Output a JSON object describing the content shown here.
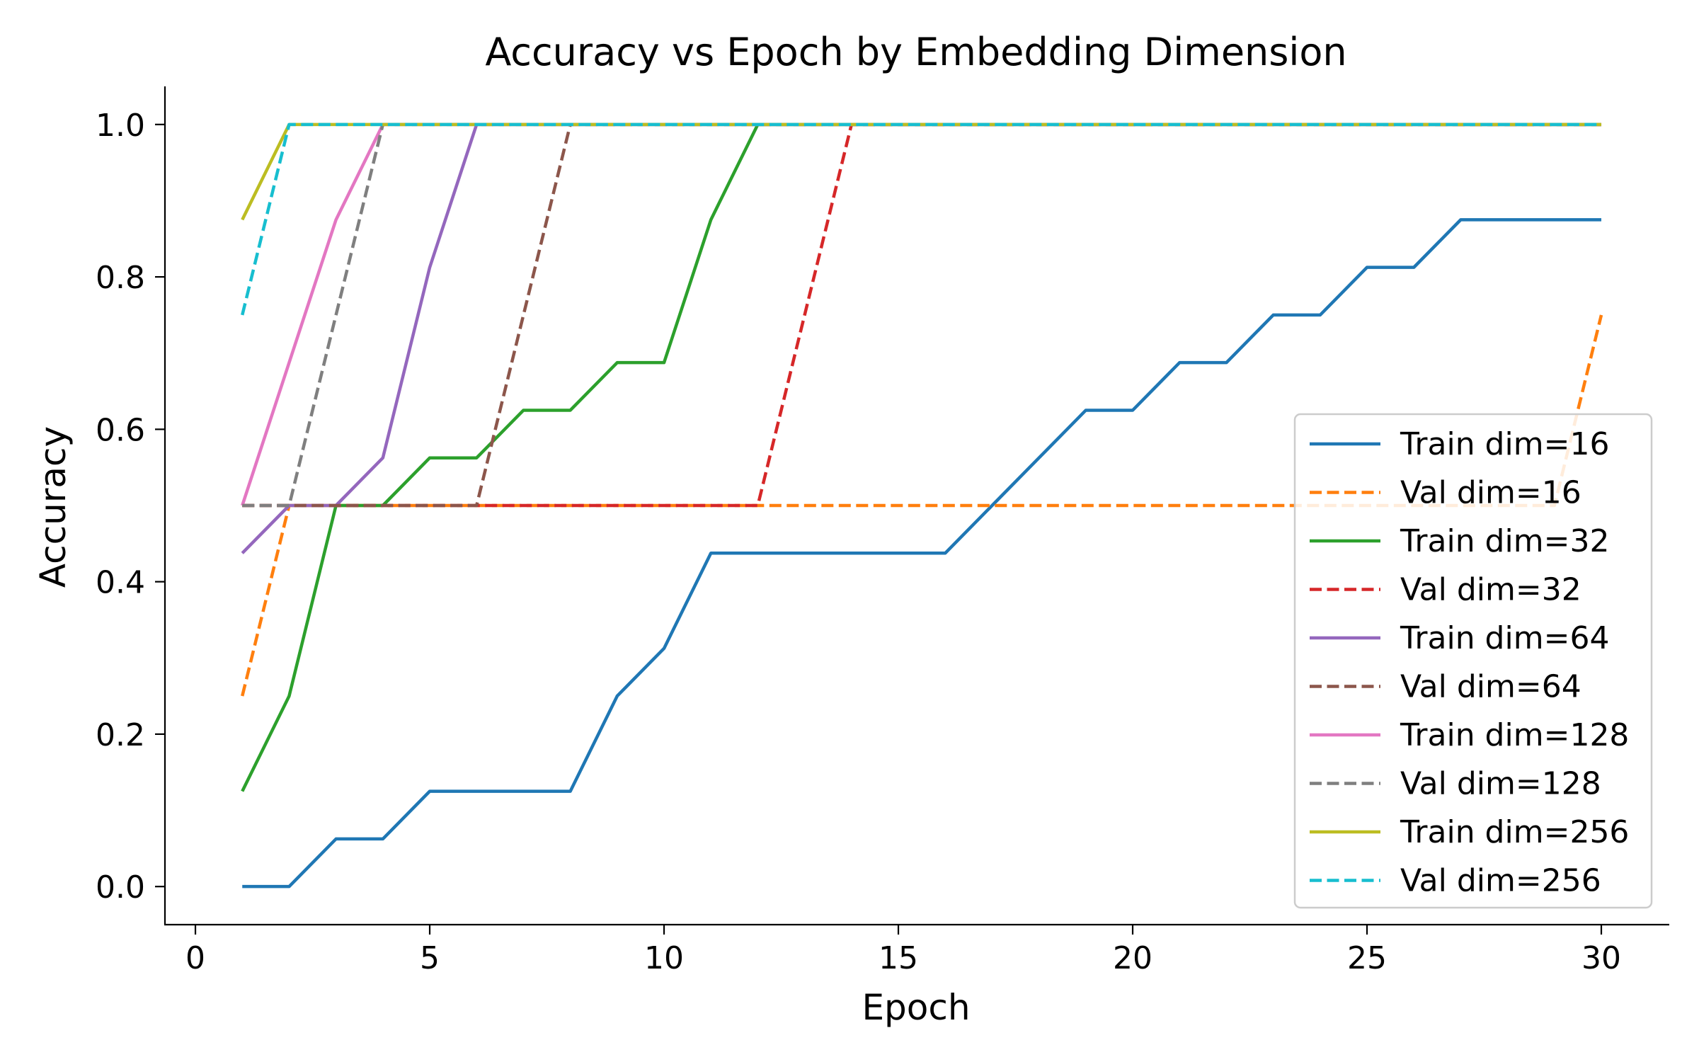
{
  "chart_data": {
    "type": "line",
    "title": "Accuracy vs Epoch by Embedding Dimension",
    "xlabel": "Epoch",
    "ylabel": "Accuracy",
    "xlim": [
      -0.65,
      31.45
    ],
    "ylim": [
      -0.05,
      1.05
    ],
    "x_ticks": [
      0,
      5,
      10,
      15,
      20,
      25,
      30
    ],
    "y_ticks": [
      0.0,
      0.2,
      0.4,
      0.6,
      0.8,
      1.0
    ],
    "x_tick_labels": [
      "0",
      "5",
      "10",
      "15",
      "20",
      "25",
      "30"
    ],
    "y_tick_labels": [
      "0.0",
      "0.2",
      "0.4",
      "0.6",
      "0.8",
      "1.0"
    ],
    "grid": false,
    "legend_position": "center-right",
    "x": [
      1,
      2,
      3,
      4,
      5,
      6,
      7,
      8,
      9,
      10,
      11,
      12,
      13,
      14,
      15,
      16,
      17,
      18,
      19,
      20,
      21,
      22,
      23,
      24,
      25,
      26,
      27,
      28,
      29,
      30
    ],
    "series": [
      {
        "name": "Train dim=16",
        "color": "#1f77b4",
        "dash": "solid",
        "values": [
          0,
          0,
          0.0625,
          0.0625,
          0.125,
          0.125,
          0.125,
          0.125,
          0.25,
          0.3125,
          0.4375,
          0.4375,
          0.4375,
          0.4375,
          0.4375,
          0.4375,
          0.5,
          0.5625,
          0.625,
          0.625,
          0.6875,
          0.6875,
          0.75,
          0.75,
          0.8125,
          0.8125,
          0.875,
          0.875,
          0.875,
          0.875
        ]
      },
      {
        "name": "Val dim=16",
        "color": "#ff7f0e",
        "dash": "dashed",
        "values": [
          0.25,
          0.5,
          0.5,
          0.5,
          0.5,
          0.5,
          0.5,
          0.5,
          0.5,
          0.5,
          0.5,
          0.5,
          0.5,
          0.5,
          0.5,
          0.5,
          0.5,
          0.5,
          0.5,
          0.5,
          0.5,
          0.5,
          0.5,
          0.5,
          0.5,
          0.5,
          0.5,
          0.5,
          0.5,
          0.75
        ]
      },
      {
        "name": "Train dim=32",
        "color": "#2ca02c",
        "dash": "solid",
        "values": [
          0.125,
          0.25,
          0.5,
          0.5,
          0.5625,
          0.5625,
          0.625,
          0.625,
          0.6875,
          0.6875,
          0.875,
          1,
          1,
          1,
          1,
          1,
          1,
          1,
          1,
          1,
          1,
          1,
          1,
          1,
          1,
          1,
          1,
          1,
          1,
          1
        ]
      },
      {
        "name": "Val dim=32",
        "color": "#d62728",
        "dash": "dashed",
        "values": [
          0.5,
          0.5,
          0.5,
          0.5,
          0.5,
          0.5,
          0.5,
          0.5,
          0.5,
          0.5,
          0.5,
          0.5,
          0.75,
          1,
          1,
          1,
          1,
          1,
          1,
          1,
          1,
          1,
          1,
          1,
          1,
          1,
          1,
          1,
          1,
          1
        ]
      },
      {
        "name": "Train dim=64",
        "color": "#9467bd",
        "dash": "solid",
        "values": [
          0.4375,
          0.5,
          0.5,
          0.5625,
          0.8125,
          1,
          1,
          1,
          1,
          1,
          1,
          1,
          1,
          1,
          1,
          1,
          1,
          1,
          1,
          1,
          1,
          1,
          1,
          1,
          1,
          1,
          1,
          1,
          1,
          1
        ]
      },
      {
        "name": "Val dim=64",
        "color": "#8c564b",
        "dash": "dashed",
        "values": [
          0.5,
          0.5,
          0.5,
          0.5,
          0.5,
          0.5,
          0.75,
          1,
          1,
          1,
          1,
          1,
          1,
          1,
          1,
          1,
          1,
          1,
          1,
          1,
          1,
          1,
          1,
          1,
          1,
          1,
          1,
          1,
          1,
          1
        ]
      },
      {
        "name": "Train dim=128",
        "color": "#e377c2",
        "dash": "solid",
        "values": [
          0.5,
          0.6875,
          0.875,
          1,
          1,
          1,
          1,
          1,
          1,
          1,
          1,
          1,
          1,
          1,
          1,
          1,
          1,
          1,
          1,
          1,
          1,
          1,
          1,
          1,
          1,
          1,
          1,
          1,
          1,
          1
        ]
      },
      {
        "name": "Val dim=128",
        "color": "#7f7f7f",
        "dash": "dashed",
        "values": [
          0.5,
          0.5,
          0.75,
          1,
          1,
          1,
          1,
          1,
          1,
          1,
          1,
          1,
          1,
          1,
          1,
          1,
          1,
          1,
          1,
          1,
          1,
          1,
          1,
          1,
          1,
          1,
          1,
          1,
          1,
          1
        ]
      },
      {
        "name": "Train dim=256",
        "color": "#bcbd22",
        "dash": "solid",
        "values": [
          0.875,
          1,
          1,
          1,
          1,
          1,
          1,
          1,
          1,
          1,
          1,
          1,
          1,
          1,
          1,
          1,
          1,
          1,
          1,
          1,
          1,
          1,
          1,
          1,
          1,
          1,
          1,
          1,
          1,
          1
        ]
      },
      {
        "name": "Val dim=256",
        "color": "#17becf",
        "dash": "dashed",
        "values": [
          0.75,
          1,
          1,
          1,
          1,
          1,
          1,
          1,
          1,
          1,
          1,
          1,
          1,
          1,
          1,
          1,
          1,
          1,
          1,
          1,
          1,
          1,
          1,
          1,
          1,
          1,
          1,
          1,
          1,
          1
        ]
      }
    ]
  }
}
